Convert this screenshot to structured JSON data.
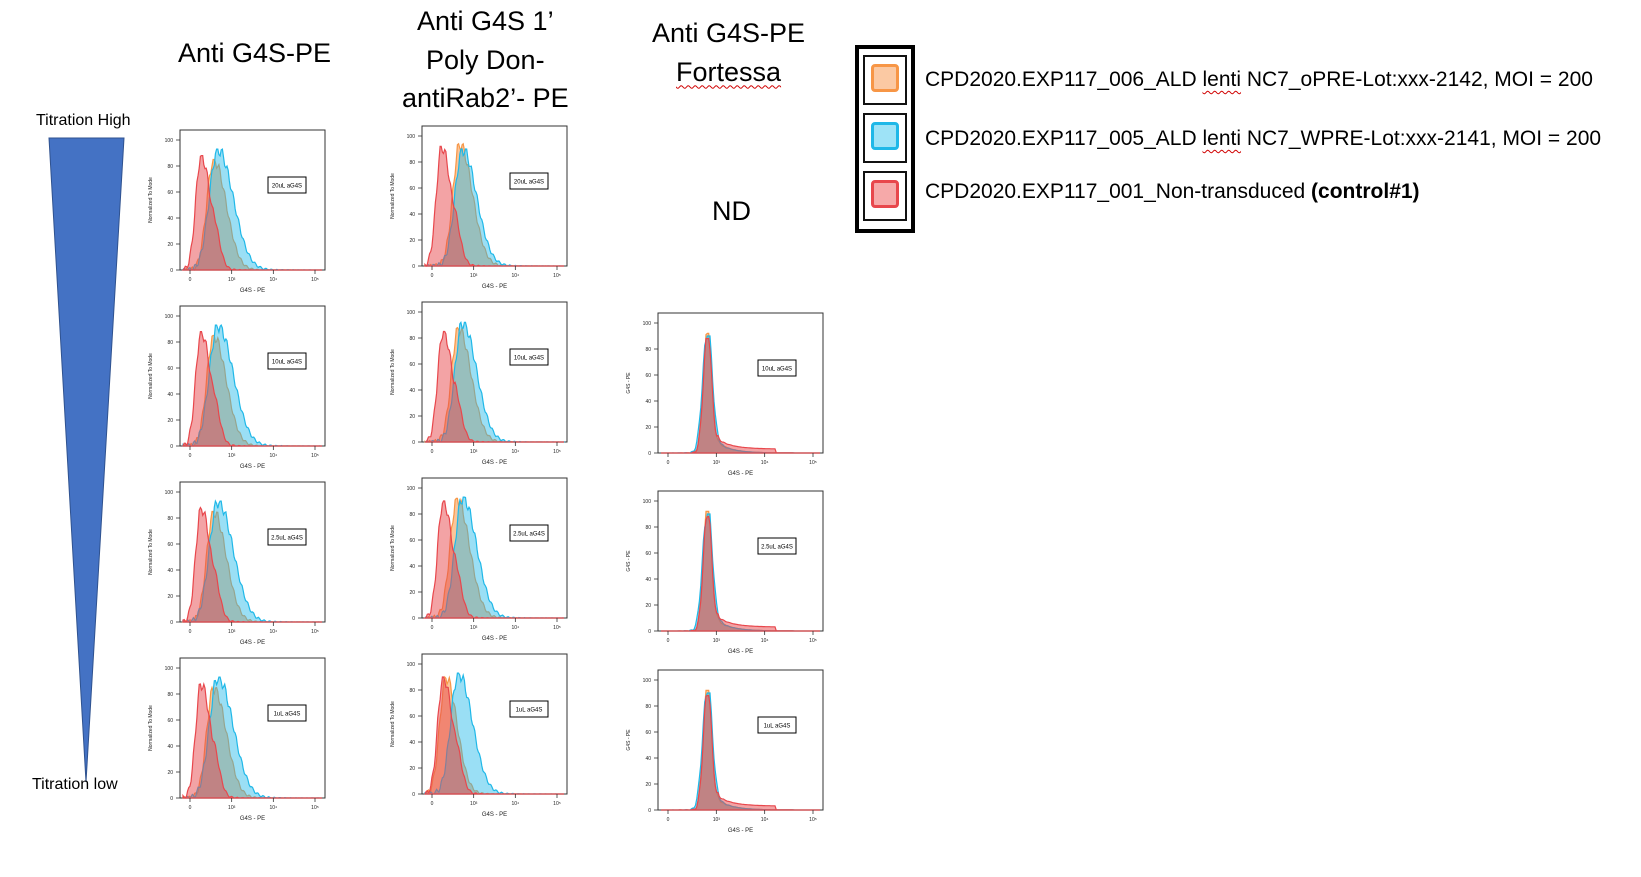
{
  "titles": {
    "col1": "Anti G4S-PE",
    "col2": [
      "Anti G4S 1’",
      "Poly Don-",
      "antiRab2’- PE"
    ],
    "col3": [
      "Anti G4S-PE",
      "Fortessa"
    ]
  },
  "nd_label": "ND",
  "titration": {
    "high": "Titration High",
    "low": "Titration low",
    "wedge_color": "#4472c4"
  },
  "legend": {
    "items": [
      {
        "pre": "CPD2020.EXP117_006_ALD ",
        "spell": "lenti",
        "post": " NC7_oPRE-Lot:xxx-2142, MOI = 200",
        "bold": "",
        "color": "#f79646",
        "fill": "#fbc9a3"
      },
      {
        "pre": "CPD2020.EXP117_005_ALD ",
        "spell": "lenti",
        "post": " NC7_WPRE-Lot:xxx-2141, MOI = 200",
        "bold": "",
        "color": "#1fb8e8",
        "fill": "#9ee3f7"
      },
      {
        "pre": "CPD2020.EXP117_001_Non-transduced ",
        "spell": "",
        "post": "",
        "bold": "(control#1)",
        "color": "#e8474c",
        "fill": "#f6a9a9"
      }
    ]
  },
  "chart_data": {
    "type": "area",
    "xlabel": "G4S - PE",
    "ylabel_col1": "Normalized To Mode",
    "ylabel_col2": "Normalized To Mode",
    "ylabel_col3": "G4S - PE",
    "yticks": [
      "0",
      "20",
      "40",
      "60",
      "80",
      "100"
    ],
    "xticks": [
      "0",
      "10³",
      "10⁴",
      "10⁵"
    ],
    "series_colors": {
      "opre": "#f79646",
      "wpre": "#1fb8e8",
      "control": "#e8474c"
    },
    "panels": [
      {
        "column": 1,
        "row": 1,
        "annotation": "20uL aG4S",
        "kind": "lsr",
        "series": [
          {
            "name": "opre",
            "peak_x": 0.22,
            "width": 0.09,
            "peak_y": 85
          },
          {
            "name": "wpre",
            "peak_x": 0.25,
            "width": 0.11,
            "peak_y": 93
          },
          {
            "name": "control",
            "peak_x": 0.13,
            "width": 0.07,
            "peak_y": 88
          }
        ]
      },
      {
        "column": 1,
        "row": 2,
        "annotation": "10uL aG4S",
        "kind": "lsr",
        "series": [
          {
            "name": "opre",
            "peak_x": 0.22,
            "width": 0.09,
            "peak_y": 85
          },
          {
            "name": "wpre",
            "peak_x": 0.25,
            "width": 0.11,
            "peak_y": 93
          },
          {
            "name": "control",
            "peak_x": 0.13,
            "width": 0.07,
            "peak_y": 88
          }
        ]
      },
      {
        "column": 1,
        "row": 3,
        "annotation": "2.5uL aG4S",
        "kind": "lsr",
        "series": [
          {
            "name": "opre",
            "peak_x": 0.22,
            "width": 0.09,
            "peak_y": 85
          },
          {
            "name": "wpre",
            "peak_x": 0.25,
            "width": 0.11,
            "peak_y": 93
          },
          {
            "name": "control",
            "peak_x": 0.13,
            "width": 0.07,
            "peak_y": 88
          }
        ]
      },
      {
        "column": 1,
        "row": 4,
        "annotation": "1uL aG4S",
        "kind": "lsr",
        "series": [
          {
            "name": "opre",
            "peak_x": 0.22,
            "width": 0.09,
            "peak_y": 85
          },
          {
            "name": "wpre",
            "peak_x": 0.25,
            "width": 0.11,
            "peak_y": 93
          },
          {
            "name": "control",
            "peak_x": 0.13,
            "width": 0.07,
            "peak_y": 88
          }
        ]
      },
      {
        "column": 2,
        "row": 1,
        "annotation": "20uL aG4S",
        "kind": "lsr",
        "series": [
          {
            "name": "opre",
            "peak_x": 0.25,
            "width": 0.09,
            "peak_y": 94
          },
          {
            "name": "wpre",
            "peak_x": 0.27,
            "width": 0.1,
            "peak_y": 90
          },
          {
            "name": "control",
            "peak_x": 0.12,
            "width": 0.07,
            "peak_y": 92
          }
        ]
      },
      {
        "column": 2,
        "row": 2,
        "annotation": "10uL aG4S",
        "kind": "lsr",
        "series": [
          {
            "name": "opre",
            "peak_x": 0.24,
            "width": 0.09,
            "peak_y": 88
          },
          {
            "name": "wpre",
            "peak_x": 0.27,
            "width": 0.1,
            "peak_y": 92
          },
          {
            "name": "control",
            "peak_x": 0.13,
            "width": 0.07,
            "peak_y": 85
          }
        ]
      },
      {
        "column": 2,
        "row": 3,
        "annotation": "2.5uL aG4S",
        "kind": "lsr",
        "series": [
          {
            "name": "opre",
            "peak_x": 0.23,
            "width": 0.09,
            "peak_y": 92
          },
          {
            "name": "wpre",
            "peak_x": 0.27,
            "width": 0.1,
            "peak_y": 93
          },
          {
            "name": "control",
            "peak_x": 0.13,
            "width": 0.07,
            "peak_y": 90
          }
        ]
      },
      {
        "column": 2,
        "row": 4,
        "annotation": "1uL aG4S",
        "kind": "lsr",
        "series": [
          {
            "name": "opre",
            "peak_x": 0.15,
            "width": 0.08,
            "peak_y": 90
          },
          {
            "name": "wpre",
            "peak_x": 0.24,
            "width": 0.1,
            "peak_y": 93
          },
          {
            "name": "control",
            "peak_x": 0.13,
            "width": 0.07,
            "peak_y": 90
          }
        ]
      },
      {
        "column": 3,
        "row": 2,
        "annotation": "10uL aG4S",
        "kind": "fortessa",
        "series": [
          {
            "name": "opre",
            "peak_x": 0.29,
            "width": 0.025,
            "peak_y": 92
          },
          {
            "name": "wpre",
            "peak_x": 0.29,
            "width": 0.03,
            "peak_y": 90
          },
          {
            "name": "control",
            "peak_x": 0.29,
            "width": 0.025,
            "peak_y": 88
          }
        ]
      },
      {
        "column": 3,
        "row": 3,
        "annotation": "2.5uL aG4S",
        "kind": "fortessa",
        "series": [
          {
            "name": "opre",
            "peak_x": 0.29,
            "width": 0.025,
            "peak_y": 92
          },
          {
            "name": "wpre",
            "peak_x": 0.29,
            "width": 0.03,
            "peak_y": 90
          },
          {
            "name": "control",
            "peak_x": 0.29,
            "width": 0.025,
            "peak_y": 88
          }
        ]
      },
      {
        "column": 3,
        "row": 4,
        "annotation": "1uL aG4S",
        "kind": "fortessa",
        "series": [
          {
            "name": "opre",
            "peak_x": 0.29,
            "width": 0.025,
            "peak_y": 92
          },
          {
            "name": "wpre",
            "peak_x": 0.29,
            "width": 0.03,
            "peak_y": 90
          },
          {
            "name": "control",
            "peak_x": 0.29,
            "width": 0.025,
            "peak_y": 88
          }
        ]
      }
    ]
  }
}
